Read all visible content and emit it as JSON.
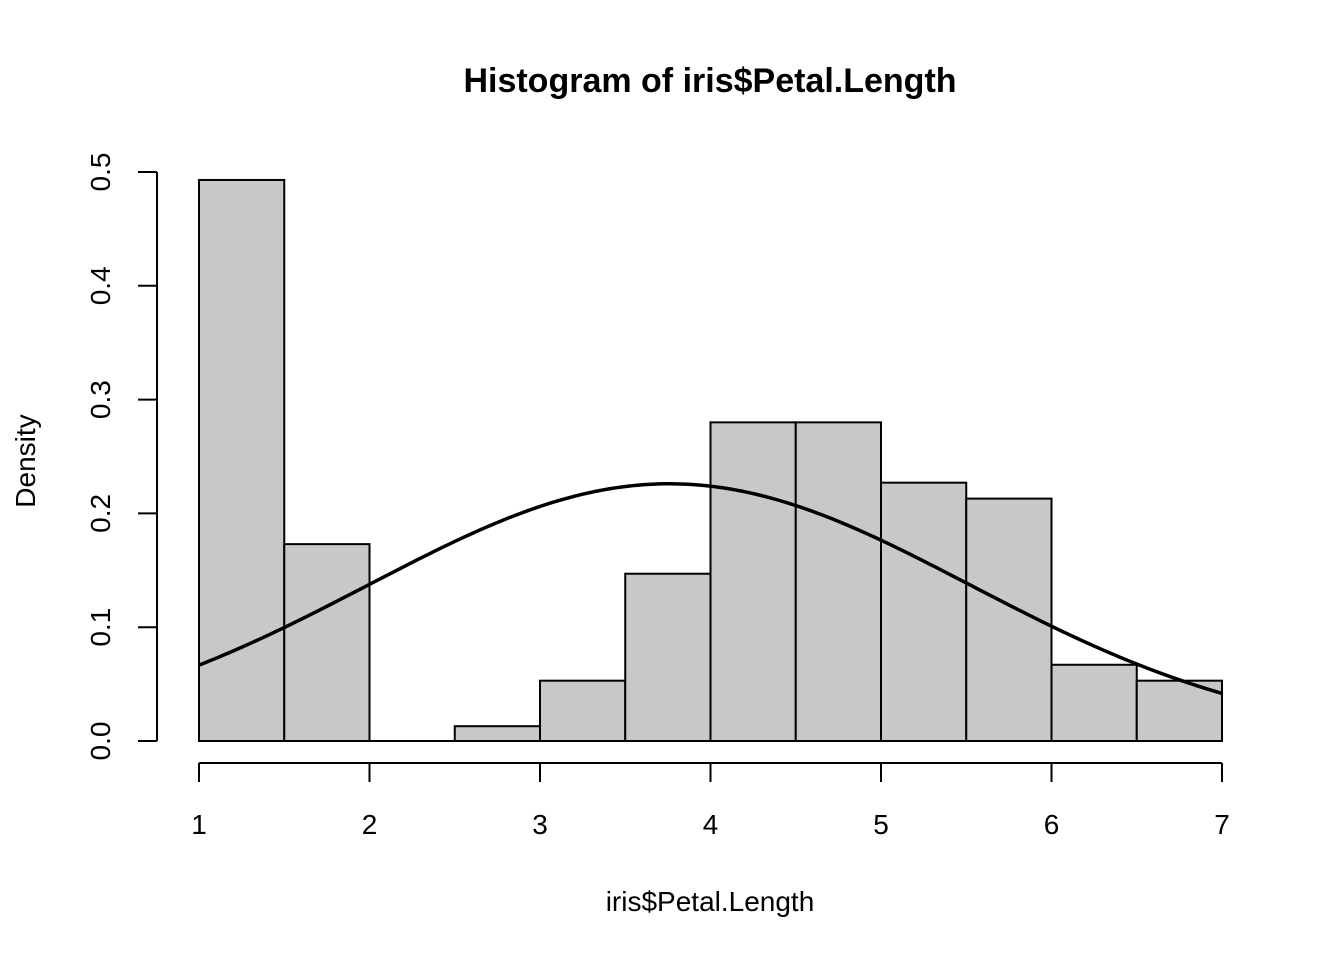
{
  "chart_data": {
    "type": "bar",
    "title": "Histogram of iris$Petal.Length",
    "xlabel": "iris$Petal.Length",
    "ylabel": "Density",
    "xlim": [
      1,
      7
    ],
    "ylim": [
      0,
      0.5
    ],
    "x_ticks": [
      "1",
      "2",
      "3",
      "4",
      "5",
      "6",
      "7"
    ],
    "y_ticks": [
      "0.0",
      "0.1",
      "0.2",
      "0.3",
      "0.4",
      "0.5"
    ],
    "bins": [
      {
        "from": 1.0,
        "to": 1.5,
        "density": 0.493
      },
      {
        "from": 1.5,
        "to": 2.0,
        "density": 0.173
      },
      {
        "from": 2.0,
        "to": 2.5,
        "density": 0.0
      },
      {
        "from": 2.5,
        "to": 3.0,
        "density": 0.013
      },
      {
        "from": 3.0,
        "to": 3.5,
        "density": 0.053
      },
      {
        "from": 3.5,
        "to": 4.0,
        "density": 0.147
      },
      {
        "from": 4.0,
        "to": 4.5,
        "density": 0.28
      },
      {
        "from": 4.5,
        "to": 5.0,
        "density": 0.28
      },
      {
        "from": 5.0,
        "to": 5.5,
        "density": 0.227
      },
      {
        "from": 5.5,
        "to": 6.0,
        "density": 0.213
      },
      {
        "from": 6.0,
        "to": 6.5,
        "density": 0.067
      },
      {
        "from": 6.5,
        "to": 7.0,
        "density": 0.053
      }
    ],
    "curve": {
      "type": "normal",
      "mean": 3.758,
      "sd": 1.765
    },
    "colors": {
      "bar_fill": "#c8c8c8",
      "stroke": "#000000"
    },
    "grid": false
  }
}
